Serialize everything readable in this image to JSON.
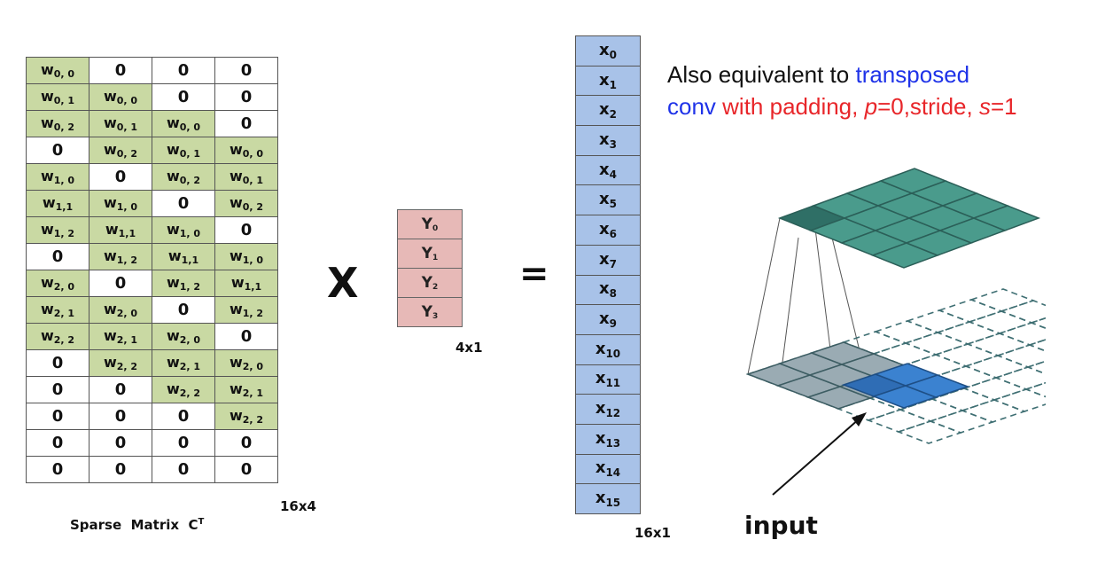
{
  "matrix": {
    "rows": [
      [
        [
          "w",
          "0, 0"
        ],
        [
          "z",
          "0"
        ],
        [
          "z",
          "0"
        ],
        [
          "z",
          "0"
        ]
      ],
      [
        [
          "w",
          "0, 1"
        ],
        [
          "w",
          "0, 0"
        ],
        [
          "z",
          "0"
        ],
        [
          "z",
          "0"
        ]
      ],
      [
        [
          "w",
          "0, 2"
        ],
        [
          "w",
          "0, 1"
        ],
        [
          "w",
          "0, 0"
        ],
        [
          "z",
          "0"
        ]
      ],
      [
        [
          "z",
          "0"
        ],
        [
          "w",
          "0, 2"
        ],
        [
          "w",
          "0, 1"
        ],
        [
          "w",
          "0, 0"
        ]
      ],
      [
        [
          "w",
          "1, 0"
        ],
        [
          "z",
          "0"
        ],
        [
          "w",
          "0, 2"
        ],
        [
          "w",
          "0, 1"
        ]
      ],
      [
        [
          "w",
          "1,1"
        ],
        [
          "w",
          "1, 0"
        ],
        [
          "z",
          "0"
        ],
        [
          "w",
          "0, 2"
        ]
      ],
      [
        [
          "w",
          "1, 2"
        ],
        [
          "w",
          "1,1"
        ],
        [
          "w",
          "1, 0"
        ],
        [
          "z",
          "0"
        ]
      ],
      [
        [
          "z",
          "0"
        ],
        [
          "w",
          "1, 2"
        ],
        [
          "w",
          "1,1"
        ],
        [
          "w",
          "1, 0"
        ]
      ],
      [
        [
          "w",
          "2, 0"
        ],
        [
          "z",
          "0"
        ],
        [
          "w",
          "1, 2"
        ],
        [
          "w",
          "1,1"
        ]
      ],
      [
        [
          "w",
          "2, 1"
        ],
        [
          "w",
          "2, 0"
        ],
        [
          "z",
          "0"
        ],
        [
          "w",
          "1, 2"
        ]
      ],
      [
        [
          "w",
          "2, 2"
        ],
        [
          "w",
          "2, 1"
        ],
        [
          "w",
          "2, 0"
        ],
        [
          "z",
          "0"
        ]
      ],
      [
        [
          "z",
          "0"
        ],
        [
          "w",
          "2, 2"
        ],
        [
          "w",
          "2, 1"
        ],
        [
          "w",
          "2, 0"
        ]
      ],
      [
        [
          "z",
          "0"
        ],
        [
          "z",
          "0"
        ],
        [
          "w",
          "2, 2"
        ],
        [
          "w",
          "2, 1"
        ]
      ],
      [
        [
          "z",
          "0"
        ],
        [
          "z",
          "0"
        ],
        [
          "z",
          "0"
        ],
        [
          "w",
          "2, 2"
        ]
      ],
      [
        [
          "z",
          "0"
        ],
        [
          "z",
          "0"
        ],
        [
          "z",
          "0"
        ],
        [
          "z",
          "0"
        ]
      ],
      [
        [
          "z",
          "0"
        ],
        [
          "z",
          "0"
        ],
        [
          "z",
          "0"
        ],
        [
          "z",
          "0"
        ]
      ]
    ],
    "weight_symbol": "w",
    "size_label": "16x4",
    "caption_main": "Sparse  Matrix  C",
    "caption_sup": "T"
  },
  "times_symbol": "X",
  "equals_symbol": "=",
  "y_vector": {
    "symbol": "Y",
    "subscripts": [
      "0",
      "1",
      "2",
      "3"
    ],
    "size_label": "4x1"
  },
  "x_vector": {
    "symbol": "x",
    "subscripts": [
      "0",
      "1",
      "2",
      "3",
      "4",
      "5",
      "6",
      "7",
      "8",
      "9",
      "10",
      "11",
      "12",
      "13",
      "14",
      "15"
    ],
    "size_label": "16x1"
  },
  "note": {
    "line1_black": "Also equivalent to ",
    "line1_blue": "transposed",
    "line2_blue": "conv",
    "line2_red_a": " with padding, ",
    "line2_p": "p",
    "line2_red_b": "=0,stride, ",
    "line2_s": "s",
    "line2_red_c": "=1"
  },
  "input_label": "input",
  "colors": {
    "weight_cell": "#c9d9a3",
    "y_cell": "#e7b9b7",
    "x_cell": "#a8c2e8",
    "output_grid": "#4a9b8c",
    "input_grid": "#9aabb3",
    "kernel": "#3b82d0",
    "blue_text": "#1f33e8",
    "red_text": "#e8262a"
  }
}
